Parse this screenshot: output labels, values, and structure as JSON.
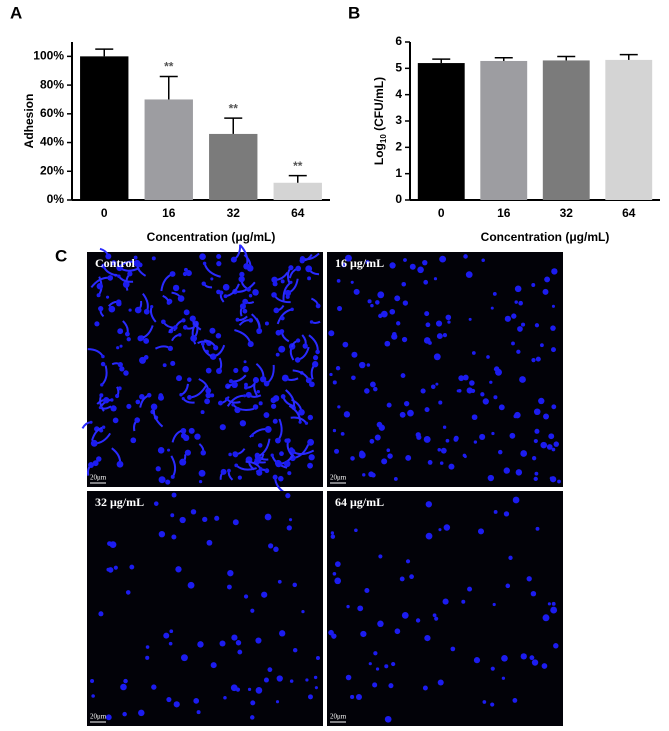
{
  "chart_data": [
    {
      "type": "bar",
      "panel_label": "A",
      "y_label": [
        "Adhesion"
      ],
      "x_label": "Concentration (μg/mL)",
      "categories": [
        "0",
        "16",
        "32",
        "64"
      ],
      "values": [
        100,
        70,
        46,
        12
      ],
      "errors": [
        5,
        16,
        11,
        5
      ],
      "annotations": [
        null,
        "**",
        "**",
        "**"
      ],
      "colors": [
        "#000000",
        "#9d9da1",
        "#7b7b7b",
        "#d4d4d4"
      ],
      "ylim": [
        0,
        110
      ],
      "yticks": [
        {
          "value": 0,
          "label": "0%"
        },
        {
          "value": 20,
          "label": "20%"
        },
        {
          "value": 40,
          "label": "40%"
        },
        {
          "value": 60,
          "label": "60%"
        },
        {
          "value": 80,
          "label": "80%"
        },
        {
          "value": 100,
          "label": "100%"
        }
      ]
    },
    {
      "type": "bar",
      "panel_label": "B",
      "y_label": [
        "Log",
        "10",
        " (CFU/mL)"
      ],
      "x_label": "Concentration (μg/mL)",
      "categories": [
        "0",
        "16",
        "32",
        "64"
      ],
      "values": [
        5.2,
        5.28,
        5.3,
        5.32
      ],
      "errors": [
        0.15,
        0.12,
        0.15,
        0.2
      ],
      "colors": [
        "#000000",
        "#9d9da1",
        "#7b7b7b",
        "#d4d4d4"
      ],
      "ylim": [
        0,
        6
      ],
      "yticks": [
        0,
        1,
        2,
        3,
        4,
        5,
        6
      ]
    }
  ],
  "micrographs": {
    "panel_label": "C",
    "images": [
      {
        "label": "Control",
        "scale_bar": "20μm"
      },
      {
        "label": "16 μg/mL",
        "scale_bar": "20μm"
      },
      {
        "label": "32 μg/mL",
        "scale_bar": "20μm"
      },
      {
        "label": "64 μg/mL",
        "scale_bar": "20μm"
      }
    ]
  }
}
